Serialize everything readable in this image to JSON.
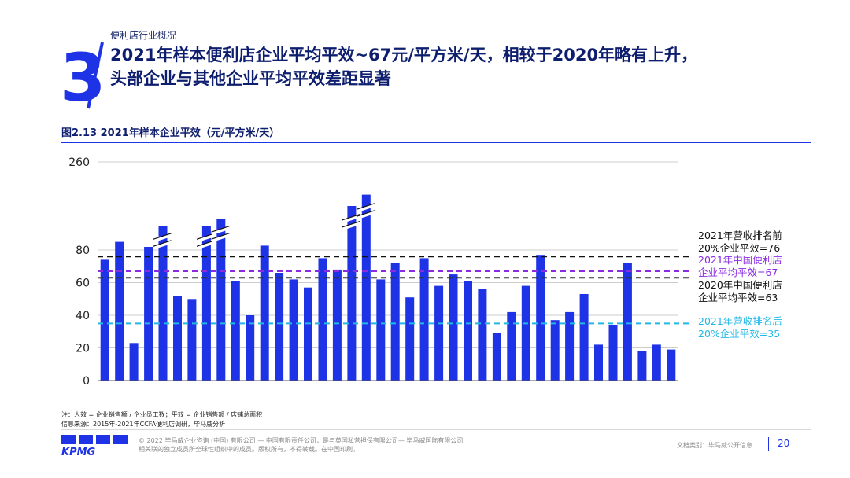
{
  "header": {
    "section_number": "3",
    "kicker": "便利店行业概况",
    "title_line1": "2021年样本便利店企业平均平效~67元/平方米/天，相较于2020年略有上升，",
    "title_line2": "头部企业与其他企业平均平效差距显著"
  },
  "figure": {
    "title": "图2.13 2021年样本企业平效（元/平方米/天）"
  },
  "colors": {
    "bar": "#1e32e6",
    "top20_line": "#111111",
    "avg2021_line": "#8a2be2",
    "avg2020_line": "#333333",
    "bottom20_line": "#22b8e6",
    "grid": "#cccccc",
    "navy": "#0e1e6e"
  },
  "chart_data": {
    "type": "bar",
    "title": "2021年样本企业平效（元/平方米/天）",
    "xlabel": "",
    "ylabel": "",
    "y_ticks": [
      "0",
      "20",
      "40",
      "60",
      "80",
      "260"
    ],
    "y_axis_note": "broken axis: 0-80 linear, break between 80 and 260",
    "values": [
      74,
      93,
      23,
      85,
      118,
      52,
      50,
      118,
      130,
      61,
      40,
      87,
      66,
      62,
      57,
      75,
      68,
      150,
      168,
      62,
      72,
      51,
      75,
      58,
      65,
      61,
      56,
      29,
      42,
      58,
      77,
      37,
      42,
      53,
      22,
      34,
      72,
      18,
      22,
      19
    ],
    "broken_bars": [
      4,
      7,
      8,
      17,
      18
    ],
    "reference_lines": [
      {
        "key": "top20",
        "value": 76,
        "label_line1": "2021年营收排名前",
        "label_line2": "20%企业平效=76"
      },
      {
        "key": "avg2021",
        "value": 67,
        "label_line1": "2021年中国便利店",
        "label_line2": "企业平均平效=67"
      },
      {
        "key": "avg2020",
        "value": 63,
        "label_line1": "2020年中国便利店",
        "label_line2": "企业平均平效=63"
      },
      {
        "key": "bottom20",
        "value": 35,
        "label_line1": "2021年营收排名后",
        "label_line2": "20%企业平效=35"
      }
    ]
  },
  "notes": {
    "line1": "注：人效 = 企业销售额 / 企业员工数；平效 = 企业销售额 / 店铺总面积",
    "line2": "信息来源：2015年-2021年CCFA便利店调研，毕马威分析"
  },
  "footer": {
    "logo_text": "KPMG",
    "legal_line1": "© 2022 毕马威企业咨询 (中国) 有限公司 — 中国有限责任公司，是与英国私营担保有限公司— 毕马威国际有限公司",
    "legal_line2": "相关联的独立成员所全球性组织中的成员。版权所有，不得转载。在中国印刷。",
    "doc_type": "文档类别：毕马威公开信息",
    "page_number": "20"
  }
}
